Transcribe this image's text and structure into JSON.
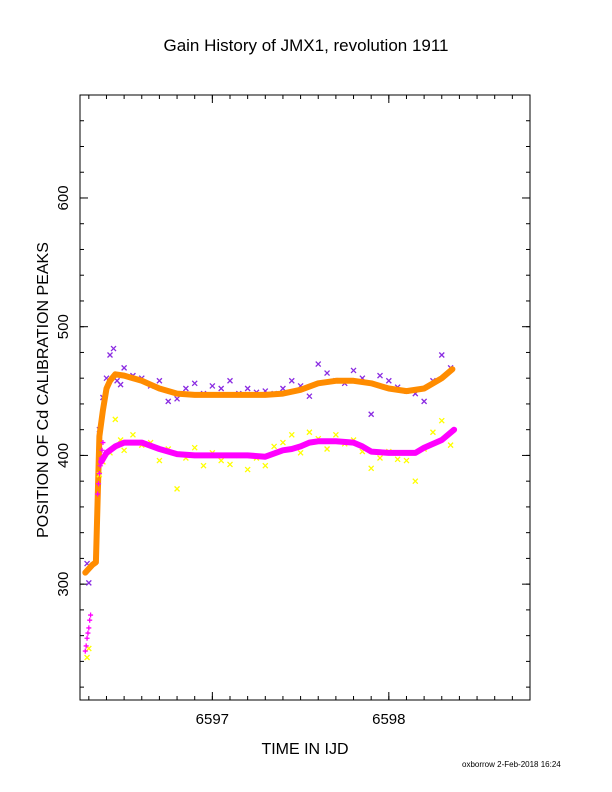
{
  "title": "Gain History of JMX1, revolution 1911",
  "footer": "oxborrow  2-Feb-2018 16:24",
  "colors": {
    "purple": "#8a2be2",
    "orange": "#ff8c00",
    "yellow": "#ffff00",
    "magenta": "#ff00ff"
  },
  "chart_data": {
    "type": "scatter",
    "title": "Gain History of JMX1, revolution 1911",
    "xlabel": "TIME IN IJD",
    "ylabel": "POSITION OF Cd CALIBRATION PEAKS",
    "xlim": [
      6596.25,
      6598.8
    ],
    "ylim": [
      210,
      680
    ],
    "xticks": [
      6597,
      6598
    ],
    "yticks": [
      300,
      400,
      500,
      600
    ],
    "grid": false,
    "series": [
      {
        "color": "#8a2be2",
        "marker": "x",
        "x": [
          6596.29,
          6596.3,
          6596.34,
          6596.36,
          6596.38,
          6596.4,
          6596.42,
          6596.44,
          6596.46,
          6596.48,
          6596.5,
          6596.55,
          6596.6,
          6596.65,
          6596.7,
          6596.75,
          6596.8,
          6596.85,
          6596.9,
          6596.95,
          6597.0,
          6597.05,
          6597.1,
          6597.15,
          6597.2,
          6597.25,
          6597.3,
          6597.35,
          6597.4,
          6597.45,
          6597.5,
          6597.55,
          6597.6,
          6597.65,
          6597.7,
          6597.75,
          6597.8,
          6597.85,
          6597.9,
          6597.95,
          6598.0,
          6598.05,
          6598.1,
          6598.15,
          6598.2,
          6598.25,
          6598.3,
          6598.35
        ],
        "y": [
          316,
          301,
          318,
          420,
          445,
          460,
          478,
          483,
          458,
          455,
          468,
          462,
          460,
          454,
          458,
          442,
          444,
          452,
          456,
          448,
          454,
          452,
          458,
          448,
          452,
          449,
          450,
          448,
          452,
          458,
          454,
          446,
          471,
          464,
          458,
          456,
          466,
          460,
          432,
          462,
          458,
          453,
          450,
          448,
          442,
          458,
          478,
          468
        ]
      },
      {
        "color": "#ff8c00",
        "marker": "line",
        "x": [
          6596.28,
          6596.3,
          6596.32,
          6596.34,
          6596.36,
          6596.38,
          6596.4,
          6596.42,
          6596.45,
          6596.5,
          6596.6,
          6596.7,
          6596.8,
          6596.9,
          6597.0,
          6597.1,
          6597.2,
          6597.3,
          6597.4,
          6597.5,
          6597.6,
          6597.7,
          6597.8,
          6597.9,
          6598.0,
          6598.1,
          6598.2,
          6598.3,
          6598.36
        ],
        "y": [
          309,
          312,
          315,
          317,
          415,
          435,
          452,
          458,
          463,
          462,
          458,
          452,
          448,
          447,
          447,
          447,
          447,
          447,
          448,
          451,
          456,
          458,
          458,
          456,
          452,
          450,
          452,
          460,
          467
        ]
      },
      {
        "color": "#ffff00",
        "marker": "x",
        "x": [
          6596.29,
          6596.3,
          6596.36,
          6596.38,
          6596.42,
          6596.45,
          6596.48,
          6596.5,
          6596.55,
          6596.6,
          6596.65,
          6596.7,
          6596.75,
          6596.8,
          6596.85,
          6596.9,
          6596.95,
          6597.0,
          6597.05,
          6597.1,
          6597.15,
          6597.2,
          6597.25,
          6597.3,
          6597.35,
          6597.4,
          6597.45,
          6597.5,
          6597.55,
          6597.6,
          6597.65,
          6597.7,
          6597.75,
          6597.8,
          6597.85,
          6597.9,
          6597.95,
          6598.0,
          6598.05,
          6598.1,
          6598.15,
          6598.2,
          6598.25,
          6598.3,
          6598.35
        ],
        "y": [
          243,
          250,
          385,
          395,
          402,
          428,
          412,
          404,
          416,
          408,
          410,
          396,
          405,
          374,
          398,
          406,
          392,
          402,
          396,
          393,
          400,
          389,
          398,
          392,
          407,
          410,
          416,
          402,
          418,
          413,
          405,
          416,
          409,
          412,
          403,
          390,
          398,
          403,
          397,
          396,
          380,
          405,
          418,
          427,
          408
        ]
      },
      {
        "color": "#ff00ff",
        "marker": "+",
        "x": [
          6596.28,
          6596.285,
          6596.29,
          6596.295,
          6596.3,
          6596.305,
          6596.31,
          6596.35,
          6596.355,
          6596.36,
          6596.365,
          6596.37,
          6596.375,
          6596.38
        ],
        "y": [
          248,
          252,
          258,
          262,
          266,
          272,
          276,
          370,
          378,
          386,
          392,
          398,
          404,
          410
        ]
      },
      {
        "color": "#ff00ff",
        "marker": "line",
        "x": [
          6596.37,
          6596.4,
          6596.45,
          6596.5,
          6596.6,
          6596.7,
          6596.8,
          6596.9,
          6597.0,
          6597.1,
          6597.2,
          6597.3,
          6597.4,
          6597.45,
          6597.5,
          6597.55,
          6597.6,
          6597.7,
          6597.8,
          6597.85,
          6597.9,
          6598.0,
          6598.1,
          6598.15,
          6598.2,
          6598.3,
          6598.37
        ],
        "y": [
          395,
          402,
          407,
          410,
          410,
          405,
          401,
          400,
          400,
          400,
          400,
          399,
          404,
          405,
          407,
          410,
          411,
          411,
          410,
          407,
          403,
          402,
          402,
          402,
          406,
          412,
          420
        ]
      }
    ]
  }
}
